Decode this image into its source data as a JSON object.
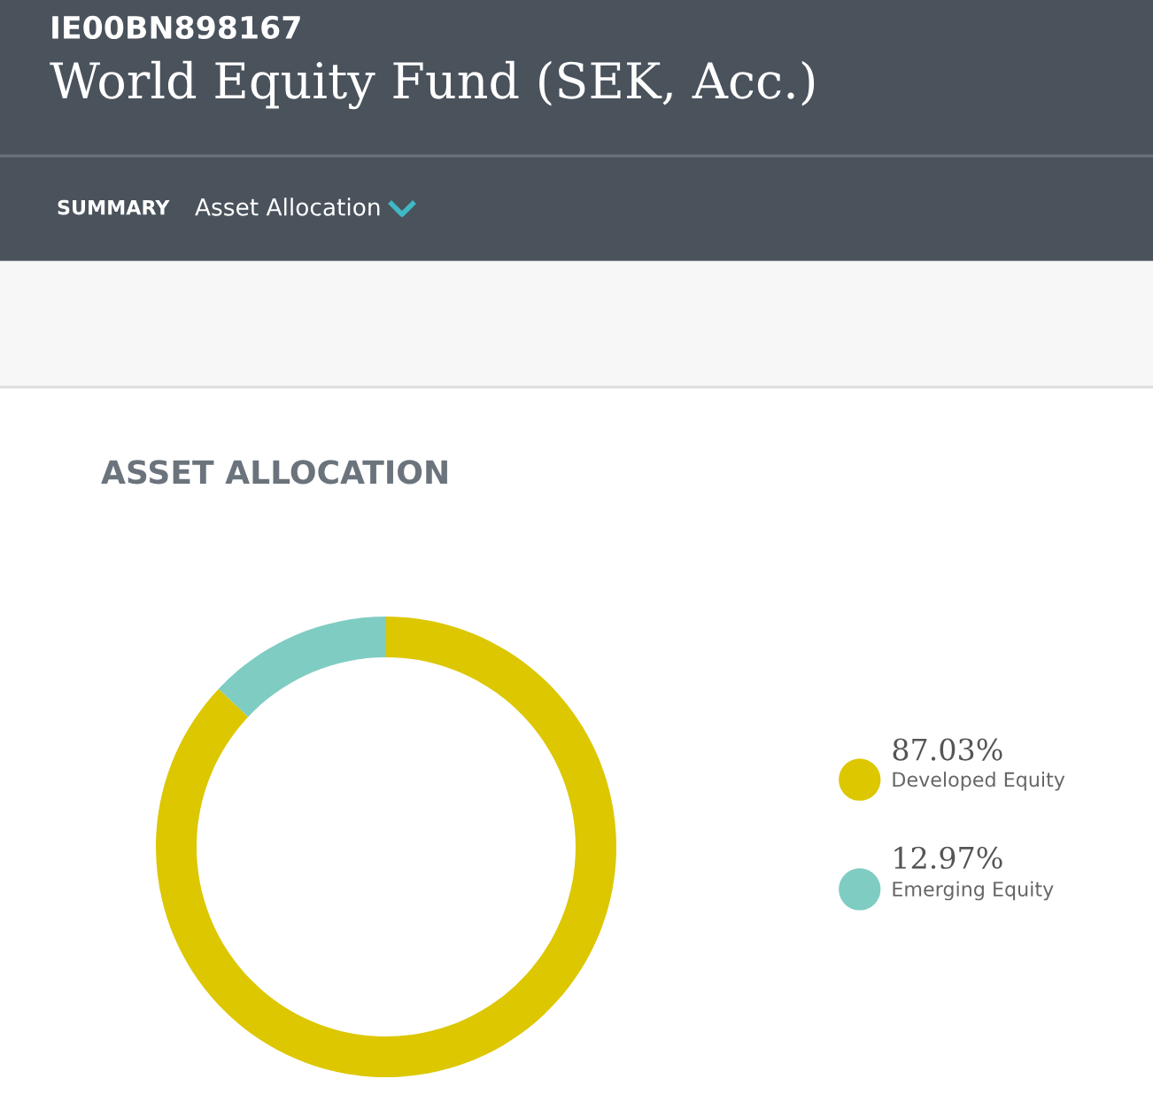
{
  "chart_data": {
    "type": "donut",
    "title": "World Equity Fund (SEK, Acc.)",
    "subtitle": "ASSET ALLOCATION",
    "annotations": [
      "IE00BN898167",
      "SUMMARY",
      "Asset Allocation"
    ],
    "categories": [
      "Developed Equity",
      "Emerging Equity"
    ],
    "values": [
      87.03,
      12.97
    ],
    "value_labels": [
      "87.03%",
      "12.97%"
    ],
    "colors": [
      "#dcc700",
      "#7fccc3"
    ],
    "legend": "right"
  }
}
